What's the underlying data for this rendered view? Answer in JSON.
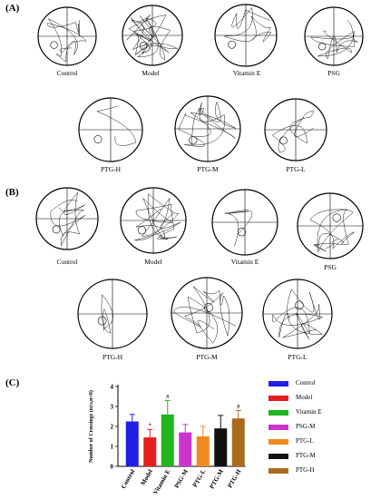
{
  "panels": {
    "a_letter": "(A)",
    "b_letter": "(B)",
    "c_letter": "(C)"
  },
  "panel_a": {
    "labels": [
      "Control",
      "Model",
      "Vitamin E",
      "PSG",
      "PTG-H",
      "PTG-M",
      "PTG-L"
    ]
  },
  "panel_b": {
    "labels": [
      "Control",
      "Model",
      "Vitamin E",
      "PSG",
      "PTG-H",
      "PTG-M",
      "PTG-L"
    ]
  },
  "chart_data": {
    "type": "bar",
    "categories": [
      "Control",
      "Model",
      "Vitamin E",
      "PSG-M",
      "PTG-L",
      "PTG-M",
      "PTG-H"
    ],
    "values": [
      2.25,
      1.45,
      2.6,
      1.7,
      1.5,
      1.9,
      2.4
    ],
    "errors": [
      0.35,
      0.4,
      0.7,
      0.4,
      0.5,
      0.65,
      0.4
    ],
    "significance": [
      "",
      "*",
      "#",
      "",
      "",
      "",
      "#"
    ],
    "colors": [
      "#1f1fe6",
      "#e61e1e",
      "#1fb51f",
      "#cc33cc",
      "#f08a1e",
      "#111111",
      "#a86b1e"
    ],
    "ylabel": "Number of Crossings (n±s,n=8)",
    "ylim": [
      0,
      4
    ],
    "yticks": [
      0,
      1,
      2,
      3,
      4
    ],
    "legend": [
      "Control",
      "Model",
      "Vitamin E",
      "PSG-M",
      "PTG-L",
      "PTG-M",
      "PTG-H"
    ],
    "legend_placement": "right"
  }
}
